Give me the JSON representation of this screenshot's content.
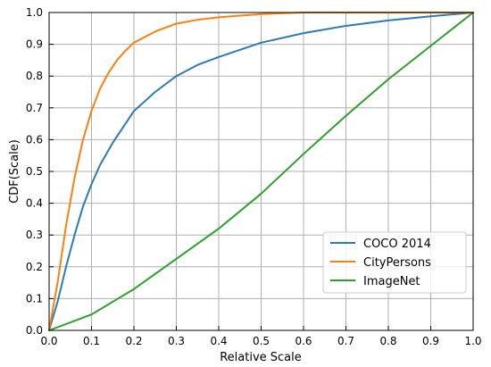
{
  "chart_data": {
    "type": "line",
    "title": "",
    "xlabel": "Relative Scale",
    "ylabel": "CDF(Scale)",
    "xlim": [
      0,
      1
    ],
    "ylim": [
      0,
      1
    ],
    "grid": true,
    "legend_position": "bottom-right",
    "xticks": [
      "0.0",
      "0.1",
      "0.2",
      "0.3",
      "0.4",
      "0.5",
      "0.6",
      "0.7",
      "0.8",
      "0.9",
      "1.0"
    ],
    "yticks": [
      "0.0",
      "0.1",
      "0.2",
      "0.3",
      "0.4",
      "0.5",
      "0.6",
      "0.7",
      "0.8",
      "0.9",
      "1.0"
    ],
    "series": [
      {
        "name": "COCO 2014",
        "color": "#2c7bb6",
        "x": [
          0,
          0.02,
          0.04,
          0.06,
          0.08,
          0.1,
          0.12,
          0.15,
          0.2,
          0.25,
          0.3,
          0.35,
          0.4,
          0.5,
          0.6,
          0.7,
          0.8,
          0.9,
          1.0
        ],
        "y": [
          0,
          0.09,
          0.2,
          0.3,
          0.39,
          0.46,
          0.52,
          0.59,
          0.69,
          0.75,
          0.8,
          0.835,
          0.86,
          0.905,
          0.935,
          0.958,
          0.975,
          0.988,
          1.0
        ]
      },
      {
        "name": "CityPersons",
        "color": "#ff7f0e",
        "x": [
          0,
          0.02,
          0.04,
          0.06,
          0.08,
          0.1,
          0.12,
          0.14,
          0.16,
          0.18,
          0.2,
          0.25,
          0.3,
          0.35,
          0.4,
          0.5,
          0.6,
          1.0
        ],
        "y": [
          0,
          0.15,
          0.33,
          0.48,
          0.6,
          0.69,
          0.76,
          0.81,
          0.85,
          0.88,
          0.905,
          0.94,
          0.965,
          0.977,
          0.985,
          0.995,
          1.0,
          1.0
        ]
      },
      {
        "name": "ImageNet",
        "color": "#2ca02c",
        "x": [
          0,
          0.1,
          0.2,
          0.3,
          0.4,
          0.5,
          0.6,
          0.7,
          0.8,
          0.9,
          1.0
        ],
        "y": [
          0,
          0.05,
          0.13,
          0.225,
          0.32,
          0.43,
          0.555,
          0.675,
          0.79,
          0.895,
          1.0
        ]
      }
    ]
  }
}
